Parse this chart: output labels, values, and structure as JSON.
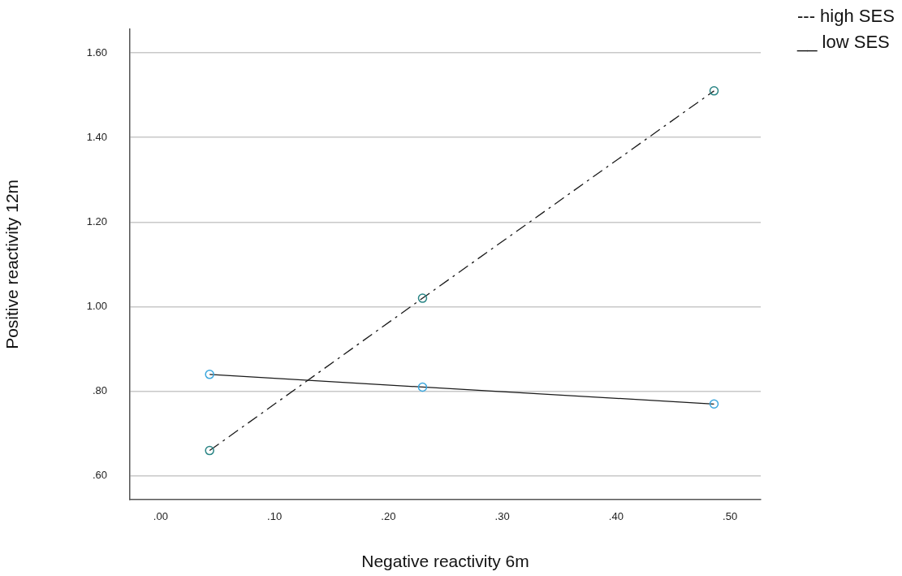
{
  "chart_data": {
    "type": "line",
    "xlabel": "Negative reactivity 6m",
    "ylabel": "Positive reactivity 12m",
    "xlim": [
      -0.027,
      0.527
    ],
    "xticks": [
      {
        "value": 0,
        "label": ".00"
      },
      {
        "value": 0.1,
        "label": ".10"
      },
      {
        "value": 0.2,
        "label": ".20"
      },
      {
        "value": 0.3,
        "label": ".30"
      },
      {
        "value": 0.4,
        "label": ".40"
      },
      {
        "value": 0.5,
        "label": ".50"
      }
    ],
    "ylim": [
      0.544,
      1.656
    ],
    "yticks": [
      {
        "value": 0.6,
        "label": ".60"
      },
      {
        "value": 0.8,
        "label": ".80"
      },
      {
        "value": 1.0,
        "label": "1.00"
      },
      {
        "value": 1.2,
        "label": "1.20"
      },
      {
        "value": 1.4,
        "label": "1.40"
      },
      {
        "value": 1.6,
        "label": "1.60"
      }
    ],
    "grid": "y",
    "legend": "top right",
    "marker": "circle",
    "series": [
      {
        "name": "--- high SES",
        "color": "#1a1a1a",
        "colors": [
          "#2a8585",
          "#2a8585",
          "#2a8585"
        ],
        "line_style": "dashed",
        "x": [
          0.043,
          0.23,
          0.486
        ],
        "values": [
          0.66,
          1.02,
          1.51
        ]
      },
      {
        "name": "__ low SES",
        "color": "#1a1a1a",
        "colors": [
          "#3aa6dd",
          "#3aa6dd",
          "#3aa6dd"
        ],
        "line_style": "solid",
        "x": [
          0.043,
          0.23,
          0.486
        ],
        "values": [
          0.84,
          0.81,
          0.77
        ]
      }
    ]
  }
}
